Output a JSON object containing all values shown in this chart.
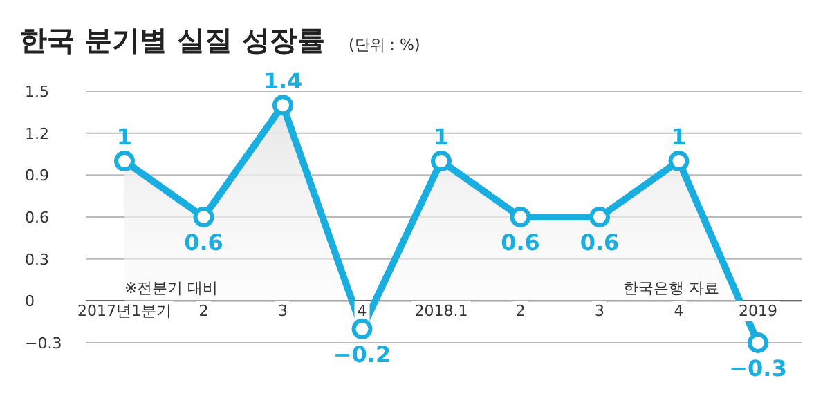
{
  "chart_data": {
    "type": "area",
    "title": "한국 분기별 실질 성장률",
    "subtitle": "(단위 : %)",
    "categories": [
      "2017년1분기",
      "2",
      "3",
      "4",
      "2018.1",
      "2",
      "3",
      "4",
      "2019"
    ],
    "values": [
      1,
      0.6,
      1.4,
      -0.2,
      1,
      0.6,
      0.6,
      1,
      -0.3
    ],
    "color": "#1aaee0",
    "marker": "circle",
    "data_labels": true,
    "ylim": [
      -0.3,
      1.5
    ],
    "yticks": [
      1.5,
      1.2,
      0.9,
      0.6,
      0.3,
      0,
      -0.3
    ],
    "grid": "y",
    "annotations": [
      "※전분기 대비",
      "한국은행 자료"
    ]
  }
}
